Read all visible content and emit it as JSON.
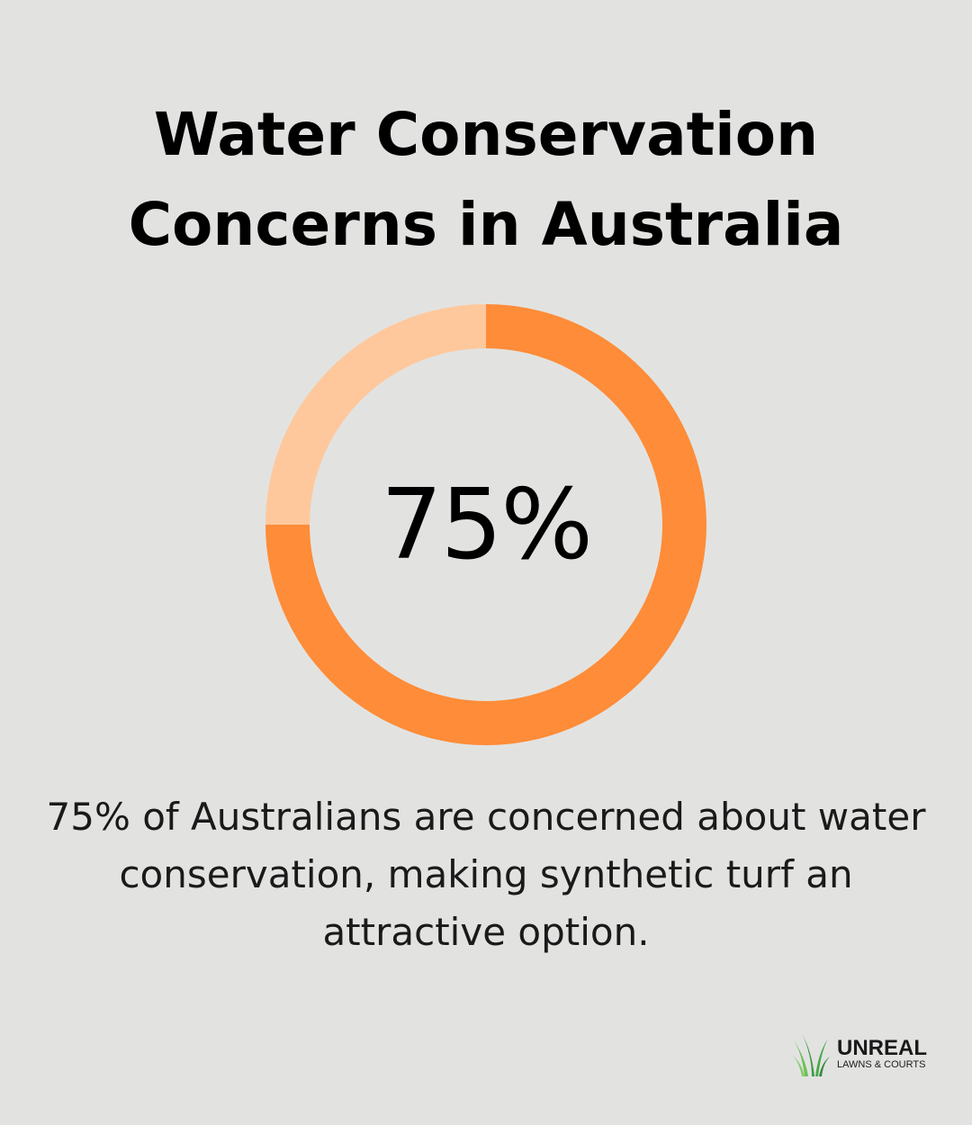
{
  "title_lines": [
    "Water Conservation",
    "Concerns in Australia"
  ],
  "chart_data": {
    "type": "pie",
    "variant": "donut",
    "value_percent": 75,
    "center_label": "75%",
    "slices": [
      {
        "value": 75,
        "color": "#fe8c38"
      },
      {
        "value": 25,
        "color": "#fec89c"
      }
    ]
  },
  "description_lines": [
    "75% of Australians are concerned about water",
    "conservation, making synthetic turf an",
    "attractive option."
  ],
  "logo": {
    "name": "UNREAL",
    "tagline": "LAWNS & COURTS",
    "icon": "grass-blades-icon",
    "icon_color": "#4aa84a"
  },
  "colors": {
    "background": "#e2e3e1",
    "accent": "#fe8c38",
    "accent_light": "#fec89c"
  }
}
